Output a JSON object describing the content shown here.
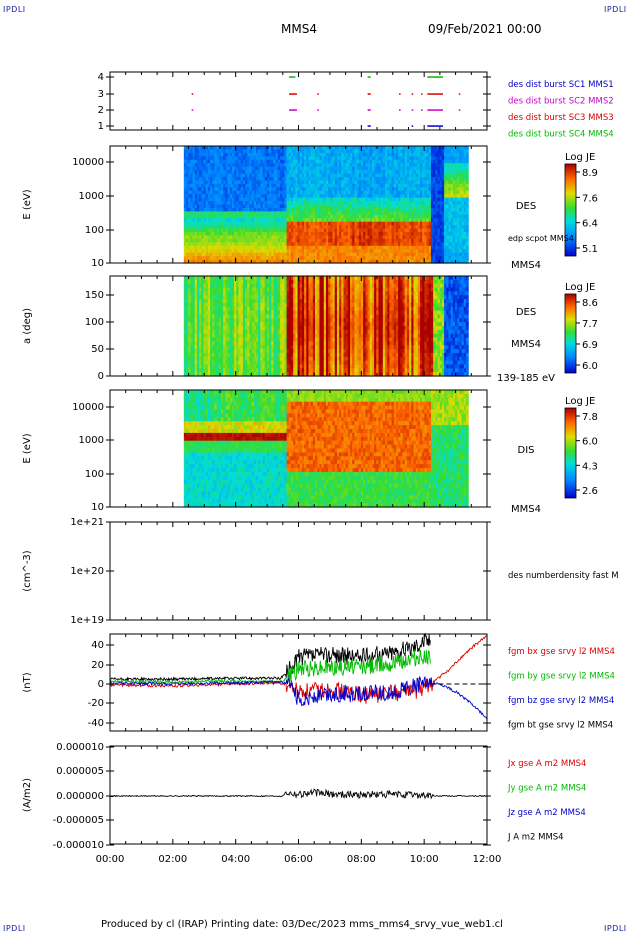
{
  "corners": {
    "tl": "IPDLI",
    "tr": "IPDLI",
    "bl": "IPDLI",
    "br": "IPDLI"
  },
  "header": {
    "spacecraft": "MMS4",
    "datetime": "09/Feb/2021 00:00"
  },
  "footer": {
    "text": "Produced by cl (IRAP)   Printing date: 03/Dec/2023   mms_mms4_srvy_vue_web1.cl"
  },
  "colors": {
    "blue": "#0000cc",
    "magenta": "#cc00cc",
    "red": "#dd0000",
    "green": "#00bb00",
    "black": "#000000"
  },
  "chart_data": [
    {
      "type": "scatter",
      "panel": "burst-availability",
      "yticks": [
        "1",
        "2",
        "3",
        "4"
      ],
      "legend": [
        {
          "label": "des dist burst SC1 MMS1",
          "color": "#0000cc"
        },
        {
          "label": "des dist burst SC2 MMS2",
          "color": "#cc00cc"
        },
        {
          "label": "des dist burst SC3 MMS3",
          "color": "#dd0000"
        },
        {
          "label": "des dist burst SC4 MMS4",
          "color": "#00bb00"
        }
      ],
      "intervals": [
        {
          "row": 4,
          "color": "#00bb00",
          "spans": [
            [
              5.7,
              5.9
            ],
            [
              8.2,
              8.3
            ],
            [
              10.1,
              10.6
            ]
          ]
        },
        {
          "row": 3,
          "color": "#dd0000",
          "spans": [
            [
              2.6,
              2.65
            ],
            [
              5.7,
              5.95
            ],
            [
              6.6,
              6.65
            ],
            [
              8.2,
              8.3
            ],
            [
              9.2,
              9.25
            ],
            [
              9.6,
              9.65
            ],
            [
              9.9,
              9.95
            ],
            [
              10.1,
              10.6
            ],
            [
              11.1,
              11.15
            ]
          ]
        },
        {
          "row": 2,
          "color": "#cc00cc",
          "spans": [
            [
              2.6,
              2.65
            ],
            [
              5.7,
              5.95
            ],
            [
              6.6,
              6.65
            ],
            [
              8.2,
              8.3
            ],
            [
              9.2,
              9.25
            ],
            [
              9.6,
              9.65
            ],
            [
              9.9,
              9.95
            ],
            [
              10.1,
              10.6
            ],
            [
              11.1,
              11.15
            ]
          ]
        },
        {
          "row": 1,
          "color": "#0000cc",
          "spans": [
            [
              8.2,
              8.3
            ],
            [
              9.6,
              9.65
            ],
            [
              10.1,
              10.6
            ]
          ]
        }
      ]
    },
    {
      "type": "heatmap",
      "panel": "des-energy",
      "ylabel": "E (eV)",
      "yticks": [
        "10",
        "100",
        "1000",
        "10000"
      ],
      "label": "DES",
      "sublabel": "edp scpot MMS4",
      "footer_label": "MMS4",
      "colorbar": {
        "title": "Log JE",
        "ticks": [
          "8.9",
          "7.6",
          "6.4",
          "5.1"
        ]
      },
      "data_range_hours": [
        2.35,
        11.4
      ]
    },
    {
      "type": "heatmap",
      "panel": "des-pitch-angle",
      "ylabel": "a (deg)",
      "yticks": [
        "0",
        "50",
        "100",
        "150"
      ],
      "label": "DES",
      "sublabel": "MMS4",
      "footer_label": "139-185 eV",
      "colorbar": {
        "title": "Log JE",
        "ticks": [
          "8.6",
          "7.7",
          "6.9",
          "6.0"
        ]
      },
      "data_range_hours": [
        2.35,
        11.4
      ]
    },
    {
      "type": "heatmap",
      "panel": "dis-energy",
      "ylabel": "E (eV)",
      "yticks": [
        "10",
        "100",
        "1000",
        "10000"
      ],
      "label": "DIS",
      "footer_label": "MMS4",
      "colorbar": {
        "title": "Log JE",
        "ticks": [
          "7.8",
          "6.0",
          "4.3",
          "2.6"
        ]
      },
      "data_range_hours": [
        2.35,
        11.4
      ]
    },
    {
      "type": "line",
      "panel": "density",
      "ylabel": "(cm^-3)",
      "yticks": [
        "1e+19",
        "1e+20",
        "1e+21"
      ],
      "legend": [
        {
          "label": "des numberdensity fast M",
          "color": "#000000"
        }
      ],
      "series": []
    },
    {
      "type": "line",
      "panel": "magnetic-field",
      "ylabel": "(nT)",
      "yticks": [
        "-40",
        "-20",
        "0",
        "20",
        "40"
      ],
      "ylim": [
        -46,
        52
      ],
      "legend": [
        {
          "label": "fgm bx gse srvy l2 MMS4",
          "color": "#dd0000"
        },
        {
          "label": "fgm by gse srvy l2 MMS4",
          "color": "#00bb00"
        },
        {
          "label": "fgm bz gse srvy l2 MMS4",
          "color": "#0000cc"
        },
        {
          "label": "fgm bt gse srvy l2 MMS4",
          "color": "#000000"
        }
      ],
      "series": [
        {
          "name": "fgm bt gse srvy l2 MMS4",
          "x": [
            0,
            2,
            4,
            5.4,
            5.6,
            6,
            7,
            8,
            9,
            9.5,
            10,
            10.2
          ],
          "y": [
            5,
            5,
            6,
            6,
            10,
            28,
            30,
            28,
            33,
            36,
            45,
            45
          ]
        },
        {
          "name": "fgm by gse srvy l2 MMS4",
          "x": [
            0,
            2,
            4,
            5.4,
            5.6,
            6,
            7,
            8,
            9,
            10,
            10.2
          ],
          "y": [
            3,
            2,
            3,
            2,
            5,
            15,
            18,
            18,
            22,
            28,
            30
          ]
        },
        {
          "name": "fgm bx gse srvy l2 MMS4",
          "x": [
            0,
            2,
            4,
            5.4,
            5.6,
            6,
            7,
            8,
            9,
            10,
            10.4,
            10.8,
            11.2,
            11.6,
            12
          ],
          "y": [
            -1,
            -2,
            0,
            1,
            0,
            -8,
            -5,
            -12,
            -10,
            -5,
            5,
            15,
            28,
            40,
            50
          ]
        },
        {
          "name": "fgm bz gse srvy l2 MMS4",
          "x": [
            0,
            2,
            4,
            5.4,
            5.6,
            6,
            7,
            8,
            9,
            10,
            10.5,
            11,
            11.5,
            12
          ],
          "y": [
            1,
            0,
            1,
            2,
            0,
            -15,
            -10,
            -10,
            -8,
            0,
            0,
            -8,
            -20,
            -36
          ]
        }
      ],
      "reference_line": {
        "y": 0,
        "from_x": 10.2,
        "to_x": 12
      }
    },
    {
      "type": "line",
      "panel": "current-density",
      "ylabel": "(A/m2)",
      "yticks": [
        "-0.000010",
        "-0.000005",
        "0.000000",
        "0.000005",
        "0.000010"
      ],
      "ylim": [
        -1e-05,
        1e-05
      ],
      "legend": [
        {
          "label": "Jx gse A m2 MMS4",
          "color": "#dd0000"
        },
        {
          "label": "Jy gse A m2 MMS4",
          "color": "#00bb00"
        },
        {
          "label": "Jz gse A m2 MMS4",
          "color": "#0000cc"
        },
        {
          "label": "J A m2 MMS4",
          "color": "#000000"
        }
      ],
      "series": [
        {
          "name": "J A m2 MMS4",
          "x": [
            0,
            5.5,
            5.6,
            6,
            6.5,
            7,
            8,
            9,
            10,
            10.2,
            12
          ],
          "y": [
            0,
            0,
            8e-07,
            4e-07,
            7e-07,
            4e-07,
            3e-07,
            3e-07,
            2e-07,
            0,
            0
          ]
        }
      ]
    }
  ],
  "x_axis": {
    "ticks": [
      "00:00",
      "02:00",
      "04:00",
      "06:00",
      "08:00",
      "10:00",
      "12:00"
    ],
    "range_hours": [
      0,
      12
    ]
  }
}
